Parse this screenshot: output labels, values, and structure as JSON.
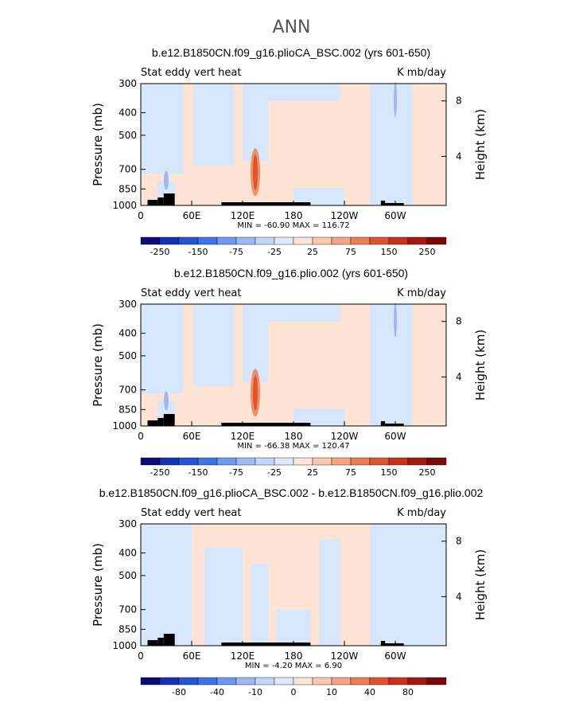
{
  "suptitle": "ANN",
  "chart_data": [
    {
      "type": "heatmap",
      "title": "b.e12.B1850CN.f09_g16.plioCA_BSC.002 (yrs 601-650)",
      "left_label": "Stat eddy vert heat",
      "right_label": "K mb/day",
      "ylabel": "Pressure (mb)",
      "ylabel_right": "Height (km)",
      "xticks": [
        "0",
        "60E",
        "120E",
        "180",
        "120W",
        "60W"
      ],
      "yticks": [
        "300",
        "400",
        "500",
        "700",
        "850",
        "1000"
      ],
      "height_ticks": [
        "4",
        "8"
      ],
      "ylim": [
        1000,
        300
      ],
      "minmax": "MIN = -60.90   MAX = 116.72",
      "colorbar_labels": [
        "-250",
        "-150",
        "-75",
        "-25",
        "25",
        "75",
        "150",
        "250"
      ],
      "features": {
        "max_lon": 135,
        "max_value": 116.72,
        "min_value": -60.9
      }
    },
    {
      "type": "heatmap",
      "title": "b.e12.B1850CN.f09_g16.plio.002 (yrs 601-650)",
      "left_label": "Stat eddy vert heat",
      "right_label": "K mb/day",
      "ylabel": "Pressure (mb)",
      "ylabel_right": "Height (km)",
      "xticks": [
        "0",
        "60E",
        "120E",
        "180",
        "120W",
        "60W"
      ],
      "yticks": [
        "300",
        "400",
        "500",
        "700",
        "850",
        "1000"
      ],
      "height_ticks": [
        "4",
        "8"
      ],
      "ylim": [
        1000,
        300
      ],
      "minmax": "MIN = -66.38   MAX = 120.47",
      "colorbar_labels": [
        "-250",
        "-150",
        "-75",
        "-25",
        "25",
        "75",
        "150",
        "250"
      ],
      "features": {
        "max_lon": 135,
        "max_value": 120.47,
        "min_value": -66.38
      }
    },
    {
      "type": "heatmap",
      "title": "b.e12.B1850CN.f09_g16.plioCA_BSC.002 - b.e12.B1850CN.f09_g16.plio.002",
      "left_label": "Stat eddy vert heat",
      "right_label": "K mb/day",
      "ylabel": "Pressure (mb)",
      "ylabel_right": "Height (km)",
      "xticks": [
        "0",
        "60E",
        "120E",
        "180",
        "120W",
        "60W"
      ],
      "yticks": [
        "300",
        "400",
        "500",
        "700",
        "850",
        "1000"
      ],
      "height_ticks": [
        "4",
        "8"
      ],
      "ylim": [
        1000,
        300
      ],
      "minmax": "MIN =   -4.20   MAX =    6.90",
      "colorbar_labels": [
        "-80",
        "-40",
        "-10",
        "0",
        "10",
        "40",
        "80"
      ],
      "features": {
        "max_value": 6.9,
        "min_value": -4.2
      }
    }
  ],
  "colors": {
    "colorbar": [
      "#0a0a7a",
      "#1531b8",
      "#2455d6",
      "#3f73e6",
      "#6f98f0",
      "#9cb9f4",
      "#c4d6f8",
      "#dde8fb",
      "#fde4d6",
      "#f9c8b0",
      "#f3a483",
      "#ec7d56",
      "#e0532f",
      "#c9301c",
      "#a4190f",
      "#7a0a06"
    ],
    "neg_light": "#d6e6fb",
    "pos_light": "#fde3d4",
    "red_core": "#e1532e",
    "red_mid": "#f08e68",
    "blue_mid": "#9cb9f4",
    "topo": "#000000"
  }
}
